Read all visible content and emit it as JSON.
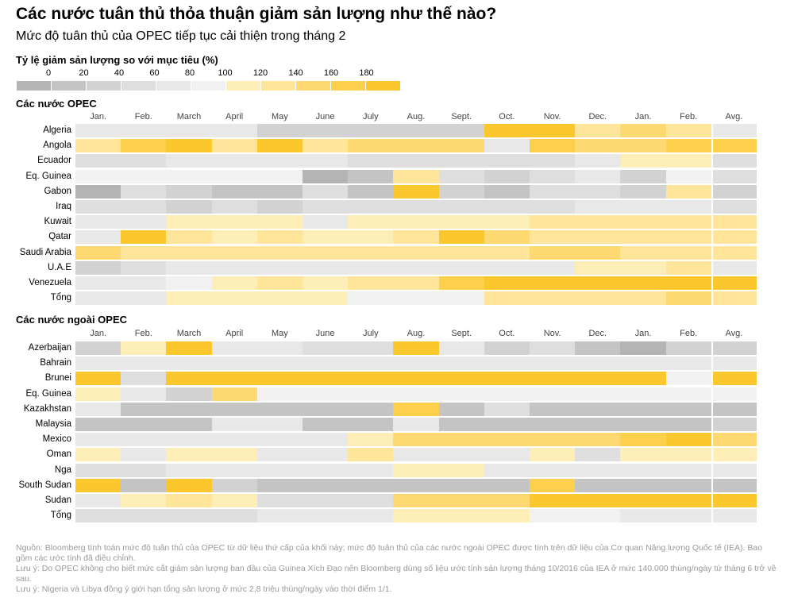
{
  "title": "Các nước tuân thủ thỏa thuận giảm sản lượng như thế nào?",
  "subtitle": "Mức độ tuân thủ của OPEC tiếp tục cải thiện trong tháng 2",
  "legend": {
    "title": "Tỷ lệ giảm sản lượng so với mục tiêu (%)",
    "ticks": [
      "0",
      "20",
      "40",
      "60",
      "80",
      "100",
      "120",
      "140",
      "160",
      "180"
    ],
    "colors": [
      "#b4b4b4",
      "#c4c4c4",
      "#d2d2d2",
      "#dedede",
      "#e8e8e8",
      "#f1f1f1",
      "#fdeeb8",
      "#fee59a",
      "#fed972",
      "#fdd04c",
      "#fcc72c"
    ]
  },
  "chart_data": [
    {
      "type": "heatmap",
      "title": "Các nước OPEC",
      "columns": [
        "Jan.",
        "Feb.",
        "March",
        "April",
        "May",
        "June",
        "July",
        "Aug.",
        "Sept.",
        "Oct.",
        "Nov.",
        "Dec.",
        "Jan.",
        "Feb.",
        "Avg."
      ],
      "rows": [
        {
          "name": "Algeria",
          "values": [
            4,
            4,
            4,
            4,
            2,
            2,
            2,
            2,
            2,
            10,
            10,
            7,
            8,
            7,
            4
          ]
        },
        {
          "name": "Angola",
          "values": [
            7,
            9,
            10,
            7,
            10,
            7,
            8,
            8,
            8,
            4,
            9,
            8,
            8,
            9,
            9
          ]
        },
        {
          "name": "Ecuador",
          "values": [
            3,
            3,
            4,
            4,
            4,
            4,
            3,
            3,
            3,
            3,
            3,
            4,
            6,
            6,
            3
          ]
        },
        {
          "name": "Eq. Guinea",
          "values": [
            5,
            5,
            5,
            5,
            5,
            0,
            1,
            7,
            3,
            2,
            3,
            4,
            2,
            5,
            3
          ]
        },
        {
          "name": "Gabon",
          "values": [
            0,
            3,
            2,
            1,
            1,
            3,
            1,
            10,
            2,
            1,
            3,
            3,
            2,
            7,
            2
          ]
        },
        {
          "name": "Iraq",
          "values": [
            3,
            3,
            2,
            3,
            2,
            3,
            3,
            3,
            3,
            3,
            3,
            4,
            4,
            4,
            3
          ]
        },
        {
          "name": "Kuwait",
          "values": [
            4,
            4,
            6,
            6,
            6,
            4,
            6,
            6,
            6,
            6,
            7,
            7,
            7,
            7,
            7
          ]
        },
        {
          "name": "Qatar",
          "values": [
            4,
            10,
            7,
            6,
            7,
            6,
            6,
            7,
            10,
            8,
            7,
            7,
            7,
            7,
            7
          ]
        },
        {
          "name": "Saudi Arabia",
          "values": [
            8,
            7,
            7,
            7,
            7,
            7,
            7,
            7,
            7,
            7,
            8,
            8,
            7,
            7,
            7
          ]
        },
        {
          "name": "U.A.E",
          "values": [
            2,
            3,
            4,
            4,
            4,
            4,
            4,
            4,
            4,
            4,
            4,
            6,
            6,
            7,
            4
          ]
        },
        {
          "name": "Venezuela",
          "values": [
            4,
            4,
            5,
            6,
            7,
            6,
            7,
            7,
            9,
            10,
            10,
            10,
            10,
            10,
            10
          ]
        },
        {
          "name": "Tổng",
          "values": [
            4,
            4,
            6,
            6,
            6,
            6,
            5,
            5,
            5,
            7,
            7,
            7,
            7,
            8,
            7
          ]
        }
      ]
    },
    {
      "type": "heatmap",
      "title": "Các nước ngoài OPEC",
      "columns": [
        "Jan.",
        "Feb.",
        "March",
        "April",
        "May",
        "June",
        "July",
        "Aug.",
        "Sept.",
        "Oct.",
        "Nov.",
        "Dec.",
        "Jan.",
        "Feb.",
        "Avg."
      ],
      "rows": [
        {
          "name": "Azerbaijan",
          "values": [
            2,
            6,
            10,
            4,
            4,
            3,
            3,
            10,
            4,
            2,
            3,
            1,
            0,
            2,
            2
          ]
        },
        {
          "name": "Bahrain",
          "values": [
            4,
            4,
            4,
            4,
            4,
            4,
            4,
            4,
            4,
            4,
            4,
            4,
            4,
            4,
            4
          ]
        },
        {
          "name": "Brunei",
          "values": [
            10,
            3,
            10,
            10,
            10,
            10,
            10,
            10,
            10,
            10,
            10,
            10,
            10,
            5,
            10
          ]
        },
        {
          "name": "Eq. Guinea",
          "values": [
            6,
            4,
            2,
            8,
            5,
            5,
            5,
            5,
            5,
            5,
            5,
            5,
            5,
            5,
            5
          ]
        },
        {
          "name": "Kazakhstan",
          "values": [
            4,
            1,
            1,
            1,
            1,
            1,
            1,
            9,
            1,
            3,
            1,
            1,
            1,
            1,
            1
          ]
        },
        {
          "name": "Malaysia",
          "values": [
            1,
            1,
            1,
            4,
            4,
            1,
            1,
            4,
            1,
            1,
            1,
            1,
            1,
            1,
            2
          ]
        },
        {
          "name": "Mexico",
          "values": [
            4,
            4,
            4,
            4,
            4,
            4,
            6,
            8,
            8,
            8,
            8,
            8,
            9,
            10,
            8
          ]
        },
        {
          "name": "Oman",
          "values": [
            6,
            4,
            6,
            6,
            4,
            4,
            7,
            4,
            4,
            4,
            6,
            3,
            6,
            6,
            6
          ]
        },
        {
          "name": "Nga",
          "values": [
            3,
            3,
            4,
            4,
            4,
            4,
            4,
            6,
            6,
            4,
            4,
            4,
            4,
            4,
            4
          ]
        },
        {
          "name": "South Sudan",
          "values": [
            10,
            1,
            10,
            2,
            1,
            1,
            1,
            1,
            1,
            1,
            9,
            1,
            1,
            1,
            1
          ]
        },
        {
          "name": "Sudan",
          "values": [
            4,
            6,
            7,
            6,
            3,
            3,
            3,
            8,
            8,
            8,
            10,
            10,
            10,
            10,
            10
          ]
        },
        {
          "name": "Tổng",
          "values": [
            3,
            3,
            3,
            3,
            4,
            4,
            4,
            6,
            6,
            6,
            5,
            5,
            4,
            4,
            4
          ]
        }
      ]
    }
  ],
  "footnotes": [
    "Nguồn: Bloomberg tính toán mức độ tuân thủ của OPEC từ dữ liệu thứ cấp của khối này; mức độ tuân thủ của các nước ngoài OPEC được tính trên dữ liệu của Cơ quan Năng lượng Quốc tế (IEA). Bao gồm các ước tính đã điều chỉnh.",
    "Lưu ý: Do OPEC không cho biết mức cắt giảm sản lượng ban đầu của Guinea Xích Đạo nên Bloomberg dùng số liệu ước tính sản lượng tháng 10/2016 của IEA ở mức 140.000 thùng/ngày từ tháng 6 trở về sau.",
    "Lưu ý: Nigeria và Libya đồng ý giới hạn tổng sản lượng ở mức 2,8 triệu thùng/ngày vào thời điểm 1/1."
  ]
}
